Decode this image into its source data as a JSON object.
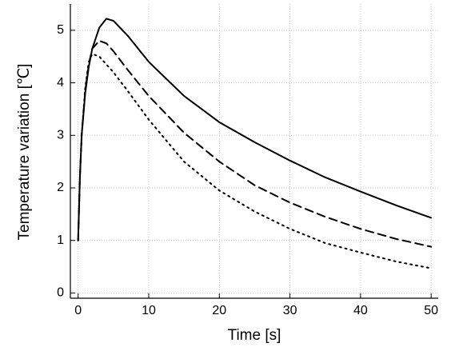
{
  "chart_data": {
    "type": "line",
    "xlabel": "Time [s]",
    "ylabel": "Temperature variation [℃]",
    "x": [
      0,
      0.25,
      0.5,
      1,
      1.5,
      2,
      3,
      4,
      5,
      7,
      10,
      15,
      20,
      25,
      30,
      35,
      40,
      45,
      50
    ],
    "series": [
      {
        "color": "#000000",
        "linestyle": "solid",
        "values": [
          1.0,
          2.2,
          3.0,
          3.8,
          4.3,
          4.65,
          5.05,
          5.22,
          5.18,
          4.9,
          4.4,
          3.75,
          3.25,
          2.87,
          2.52,
          2.2,
          1.93,
          1.67,
          1.43
        ]
      },
      {
        "color": "#000000",
        "linestyle": "dashed",
        "values": [
          1.0,
          2.2,
          3.0,
          3.85,
          4.35,
          4.65,
          4.8,
          4.75,
          4.6,
          4.25,
          3.75,
          3.05,
          2.5,
          2.05,
          1.72,
          1.45,
          1.22,
          1.03,
          0.88
        ]
      },
      {
        "color": "#000000",
        "linestyle": "dotted",
        "values": [
          1.0,
          2.2,
          3.0,
          3.9,
          4.4,
          4.55,
          4.5,
          4.35,
          4.2,
          3.85,
          3.3,
          2.5,
          1.95,
          1.55,
          1.22,
          0.95,
          0.77,
          0.6,
          0.47
        ]
      }
    ],
    "xlim": [
      -1.1,
      51
    ],
    "xticks": [
      0,
      10,
      20,
      30,
      40,
      50
    ],
    "ylim": [
      -0.1,
      5.5
    ],
    "yticks": [
      0,
      1,
      2,
      3,
      4,
      5
    ],
    "grid": true
  }
}
